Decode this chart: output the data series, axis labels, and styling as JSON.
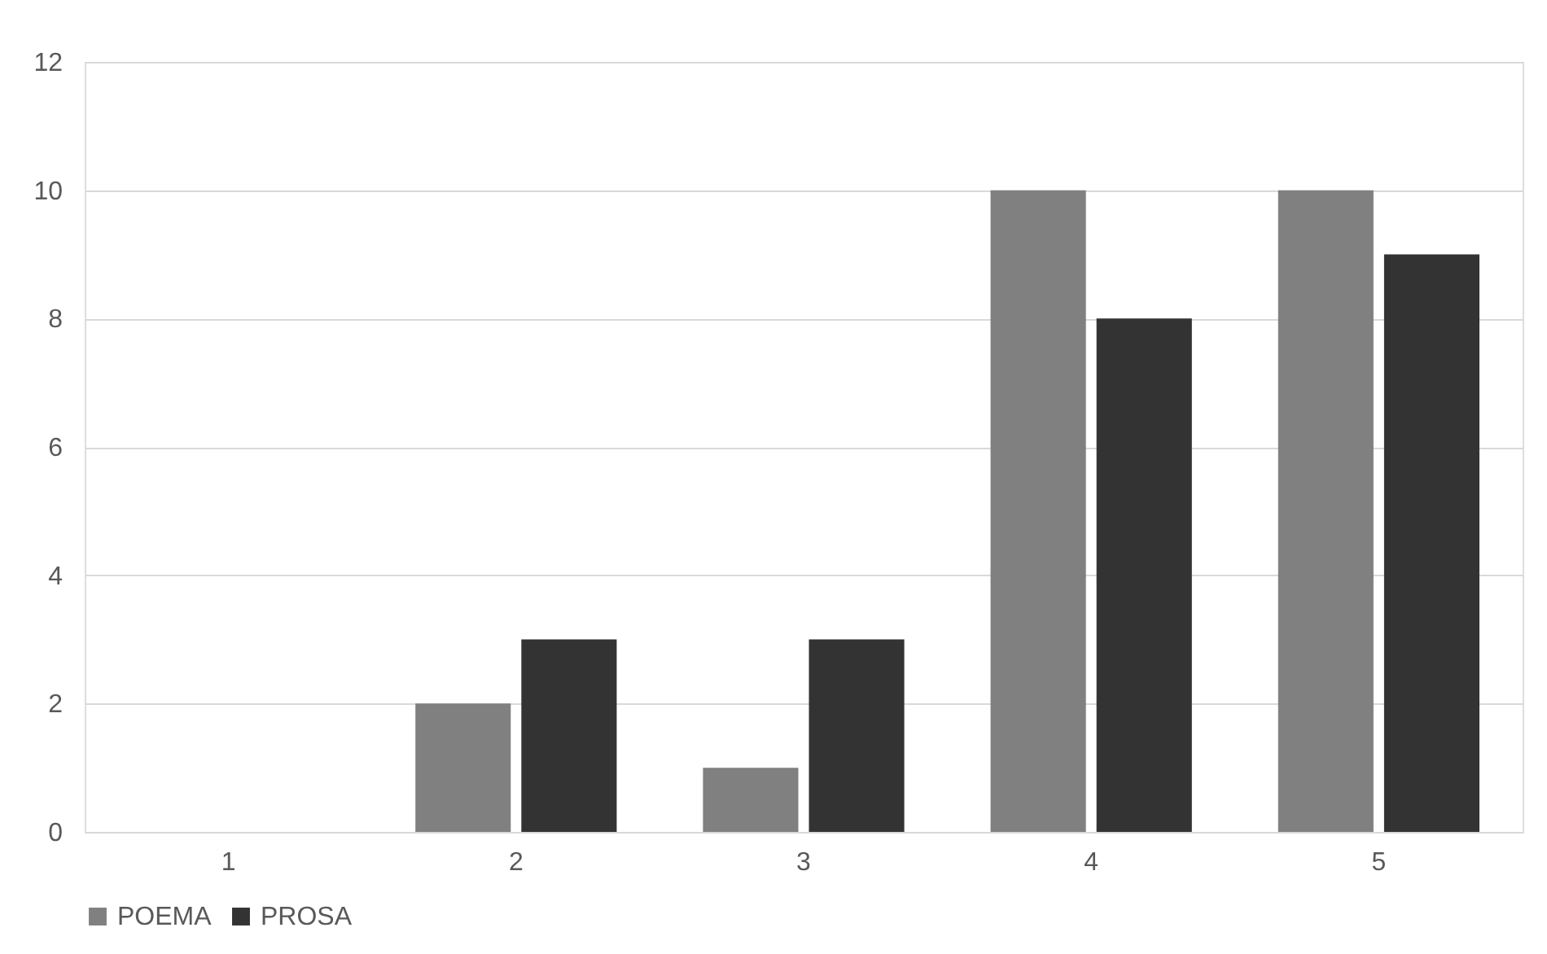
{
  "chart_data": {
    "type": "bar",
    "categories": [
      "1",
      "2",
      "3",
      "4",
      "5"
    ],
    "series": [
      {
        "name": "POEMA",
        "color": "#808080",
        "values": [
          0,
          2,
          1,
          10,
          10
        ]
      },
      {
        "name": "PROSA",
        "color": "#333333",
        "values": [
          0,
          3,
          3,
          8,
          9
        ]
      }
    ],
    "ylim": [
      0,
      12
    ],
    "yticks": [
      0,
      2,
      4,
      6,
      8,
      10,
      12
    ],
    "grid": "y",
    "legend": "bottom"
  }
}
